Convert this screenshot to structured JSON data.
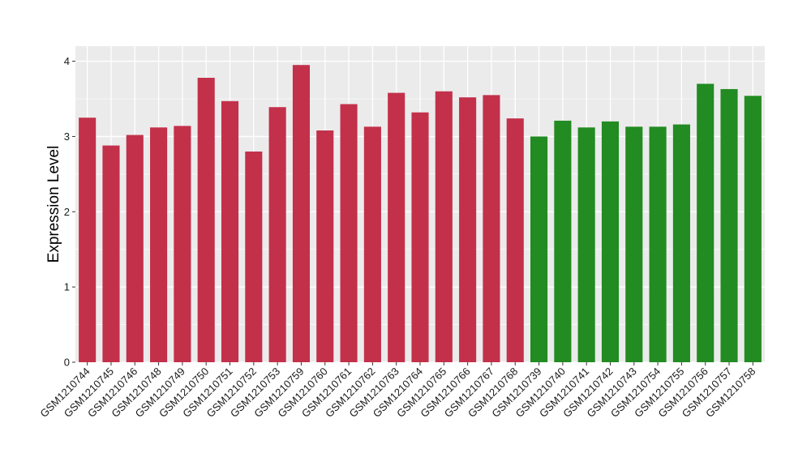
{
  "chart_data": {
    "type": "bar",
    "title": "",
    "xlabel": "",
    "ylabel": "Expression Level",
    "ylim": [
      0,
      4.2
    ],
    "yticks": [
      0,
      1,
      2,
      3,
      4
    ],
    "grid": true,
    "categories": [
      "GSM1210744",
      "GSM1210745",
      "GSM1210746",
      "GSM1210748",
      "GSM1210749",
      "GSM1210750",
      "GSM1210751",
      "GSM1210752",
      "GSM1210753",
      "GSM1210759",
      "GSM1210760",
      "GSM1210761",
      "GSM1210762",
      "GSM1210763",
      "GSM1210764",
      "GSM1210765",
      "GSM1210766",
      "GSM1210767",
      "GSM1210768",
      "GSM1210739",
      "GSM1210740",
      "GSM1210741",
      "GSM1210742",
      "GSM1210743",
      "GSM1210754",
      "GSM1210755",
      "GSM1210756",
      "GSM1210757",
      "GSM1210758"
    ],
    "values": [
      3.25,
      2.88,
      3.02,
      3.12,
      3.14,
      3.78,
      3.47,
      2.8,
      3.39,
      3.95,
      3.08,
      3.43,
      3.13,
      3.58,
      3.32,
      3.6,
      3.52,
      3.55,
      3.24,
      3.0,
      3.21,
      3.12,
      3.2,
      3.13,
      3.13,
      3.16,
      3.7,
      3.63,
      3.54
    ],
    "bar_colors": [
      "#c3304a",
      "#c3304a",
      "#c3304a",
      "#c3304a",
      "#c3304a",
      "#c3304a",
      "#c3304a",
      "#c3304a",
      "#c3304a",
      "#c3304a",
      "#c3304a",
      "#c3304a",
      "#c3304a",
      "#c3304a",
      "#c3304a",
      "#c3304a",
      "#c3304a",
      "#c3304a",
      "#c3304a",
      "#228b22",
      "#228b22",
      "#228b22",
      "#228b22",
      "#228b22",
      "#228b22",
      "#228b22",
      "#228b22",
      "#228b22",
      "#228b22"
    ],
    "panel_background": "#ebebeb",
    "gridline_color": "#ffffff"
  }
}
